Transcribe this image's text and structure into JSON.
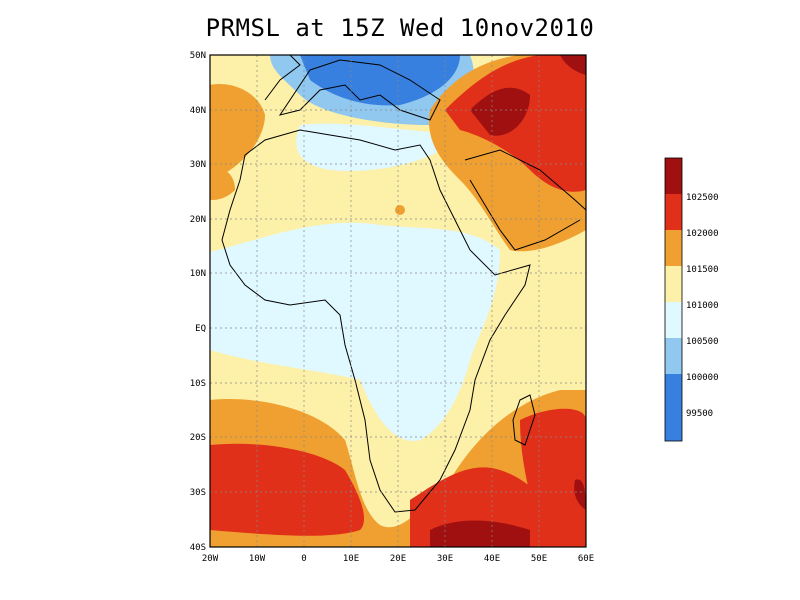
{
  "title": "PRMSL at 15Z Wed 10nov2010",
  "x_ticks": [
    "20W",
    "10W",
    "0",
    "10E",
    "20E",
    "30E",
    "40E",
    "50E",
    "60E"
  ],
  "y_ticks": [
    "50N",
    "40N",
    "30N",
    "20N",
    "10N",
    "EQ",
    "10S",
    "20S",
    "30S",
    "40S"
  ],
  "colorbar": {
    "labels": [
      "102500",
      "102000",
      "101500",
      "101000",
      "100500",
      "100000",
      "99500"
    ],
    "colors": [
      "#a01010",
      "#e0301a",
      "#f0a030",
      "#fdf0a8",
      "#e0f8ff",
      "#90c8f0",
      "#3880e0"
    ]
  }
}
